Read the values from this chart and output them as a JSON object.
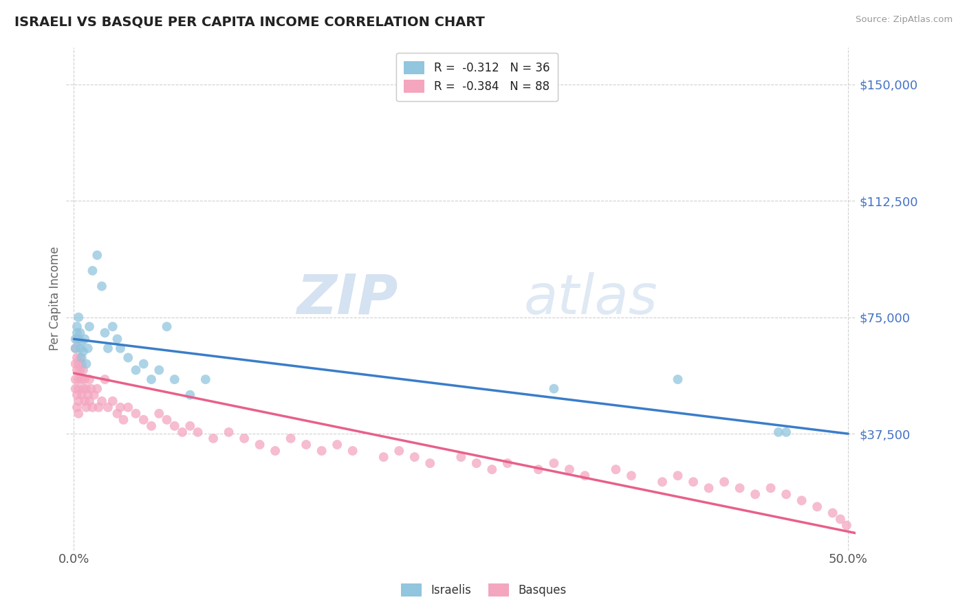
{
  "title": "ISRAELI VS BASQUE PER CAPITA INCOME CORRELATION CHART",
  "source": "Source: ZipAtlas.com",
  "ylabel": "Per Capita Income",
  "xlim": [
    -0.005,
    0.505
  ],
  "ylim": [
    0,
    162000
  ],
  "yticks": [
    37500,
    75000,
    112500,
    150000
  ],
  "ytick_labels": [
    "$37,500",
    "$75,000",
    "$112,500",
    "$150,000"
  ],
  "xticks": [
    0.0,
    0.5
  ],
  "xtick_labels": [
    "0.0%",
    "50.0%"
  ],
  "legend_r1": "R =  -0.312   N = 36",
  "legend_r2": "R =  -0.384   N = 88",
  "color_israeli": "#92c5de",
  "color_basque": "#f4a6bf",
  "color_line_israeli": "#3a7dc9",
  "color_line_basque": "#e8608a",
  "watermark_zip": "ZIP",
  "watermark_atlas": "atlas",
  "israeli_x": [
    0.001,
    0.001,
    0.002,
    0.002,
    0.003,
    0.003,
    0.004,
    0.004,
    0.005,
    0.005,
    0.006,
    0.007,
    0.008,
    0.009,
    0.01,
    0.012,
    0.015,
    0.018,
    0.02,
    0.022,
    0.025,
    0.028,
    0.03,
    0.035,
    0.04,
    0.045,
    0.05,
    0.055,
    0.06,
    0.065,
    0.075,
    0.085,
    0.31,
    0.39,
    0.455,
    0.46
  ],
  "israeli_y": [
    68000,
    65000,
    72000,
    70000,
    75000,
    68000,
    65000,
    70000,
    62000,
    67000,
    64000,
    68000,
    60000,
    65000,
    72000,
    90000,
    95000,
    85000,
    70000,
    65000,
    72000,
    68000,
    65000,
    62000,
    58000,
    60000,
    55000,
    58000,
    72000,
    55000,
    50000,
    55000,
    52000,
    55000,
    38000,
    38000
  ],
  "basque_x": [
    0.001,
    0.001,
    0.001,
    0.002,
    0.002,
    0.002,
    0.003,
    0.003,
    0.003,
    0.004,
    0.004,
    0.005,
    0.005,
    0.005,
    0.006,
    0.006,
    0.007,
    0.007,
    0.008,
    0.008,
    0.009,
    0.01,
    0.01,
    0.011,
    0.012,
    0.013,
    0.015,
    0.016,
    0.018,
    0.02,
    0.022,
    0.025,
    0.028,
    0.03,
    0.032,
    0.035,
    0.04,
    0.045,
    0.05,
    0.055,
    0.06,
    0.065,
    0.07,
    0.075,
    0.08,
    0.09,
    0.1,
    0.11,
    0.12,
    0.13,
    0.14,
    0.15,
    0.16,
    0.17,
    0.18,
    0.2,
    0.21,
    0.22,
    0.23,
    0.25,
    0.26,
    0.27,
    0.28,
    0.3,
    0.31,
    0.32,
    0.33,
    0.35,
    0.36,
    0.38,
    0.39,
    0.4,
    0.41,
    0.42,
    0.43,
    0.44,
    0.45,
    0.46,
    0.47,
    0.48,
    0.49,
    0.495,
    0.499,
    0.001,
    0.002,
    0.003,
    0.002,
    0.003
  ],
  "basque_y": [
    65000,
    60000,
    55000,
    68000,
    62000,
    58000,
    60000,
    55000,
    52000,
    62000,
    58000,
    60000,
    55000,
    50000,
    58000,
    52000,
    55000,
    48000,
    52000,
    46000,
    50000,
    55000,
    48000,
    52000,
    46000,
    50000,
    52000,
    46000,
    48000,
    55000,
    46000,
    48000,
    44000,
    46000,
    42000,
    46000,
    44000,
    42000,
    40000,
    44000,
    42000,
    40000,
    38000,
    40000,
    38000,
    36000,
    38000,
    36000,
    34000,
    32000,
    36000,
    34000,
    32000,
    34000,
    32000,
    30000,
    32000,
    30000,
    28000,
    30000,
    28000,
    26000,
    28000,
    26000,
    28000,
    26000,
    24000,
    26000,
    24000,
    22000,
    24000,
    22000,
    20000,
    22000,
    20000,
    18000,
    20000,
    18000,
    16000,
    14000,
    12000,
    10000,
    8000,
    52000,
    50000,
    48000,
    46000,
    44000
  ],
  "israeli_line_x0": 0.0,
  "israeli_line_x1": 0.5,
  "israeli_line_y0": 68000,
  "israeli_line_y1": 37500,
  "basque_line_x0": 0.0,
  "basque_line_x1": 0.5,
  "basque_line_y0": 57000,
  "basque_line_y1": 6000
}
